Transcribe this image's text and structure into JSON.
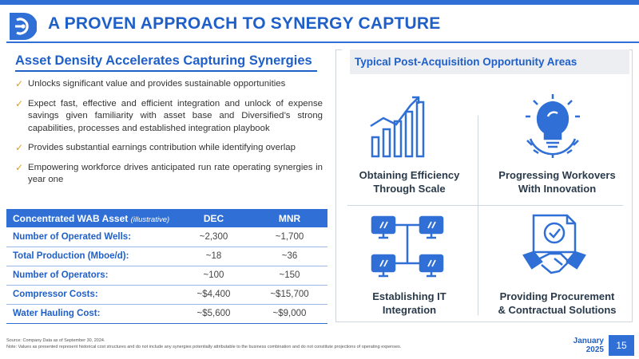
{
  "header": {
    "title": "A PROVEN APPROACH TO SYNERGY CAPTURE"
  },
  "left": {
    "heading": "Asset Density Accelerates Capturing Synergies",
    "bullets": [
      "Unlocks significant value and provides sustainable opportunities",
      "Expect fast, effective and efficient integration and unlock of expense savings given familiarity with asset base and Diversified’s strong capabilities, processes and established integration playbook",
      "Provides substantial earnings contribution while identifying overlap",
      "Empowering workforce drives anticipated run rate operating synergies in year one"
    ]
  },
  "table": {
    "header_main": "Concentrated WAB Asset",
    "header_note": "(illustrative)",
    "columns": [
      "DEC",
      "MNR"
    ],
    "rows": [
      {
        "label": "Number of Operated Wells:",
        "dec": "~2,300",
        "mnr": "~1,700"
      },
      {
        "label": "Total Production (Mboe/d):",
        "dec": "~18",
        "mnr": "~36"
      },
      {
        "label": "Number of Operators:",
        "dec": "~100",
        "mnr": "~150"
      },
      {
        "label": "Compressor Costs:",
        "dec": "~$4,400",
        "mnr": "~$15,700"
      },
      {
        "label": "Water Hauling Cost:",
        "dec": "~$5,600",
        "mnr": "~$9,000"
      }
    ]
  },
  "panel": {
    "title": "Typical Post-Acquisition Opportunity Areas",
    "cards": [
      {
        "line1": "Obtaining Efficiency",
        "line2": "Through Scale",
        "icon": "growth-chart-icon"
      },
      {
        "line1": "Progressing Workovers",
        "line2": "With Innovation",
        "icon": "lightbulb-gear-icon"
      },
      {
        "line1": "Establishing IT",
        "line2": "Integration",
        "icon": "network-computers-icon"
      },
      {
        "line1": "Providing Procurement",
        "line2": "& Contractual Solutions",
        "icon": "handshake-contract-icon"
      }
    ]
  },
  "footer": {
    "source": "Source: Company Data as of September 30, 2024.",
    "note": "Note: Values as presented represent historical cost structures and do not include any synergies potentially attributable to the business combination and do not constitute projections of operating expenses.",
    "date_line1": "January",
    "date_line2": "2025",
    "page_number": "15"
  },
  "colors": {
    "brand_blue": "#1f5fc8",
    "accent_blue": "#2f6fd6",
    "check_gold": "#e0a020"
  }
}
